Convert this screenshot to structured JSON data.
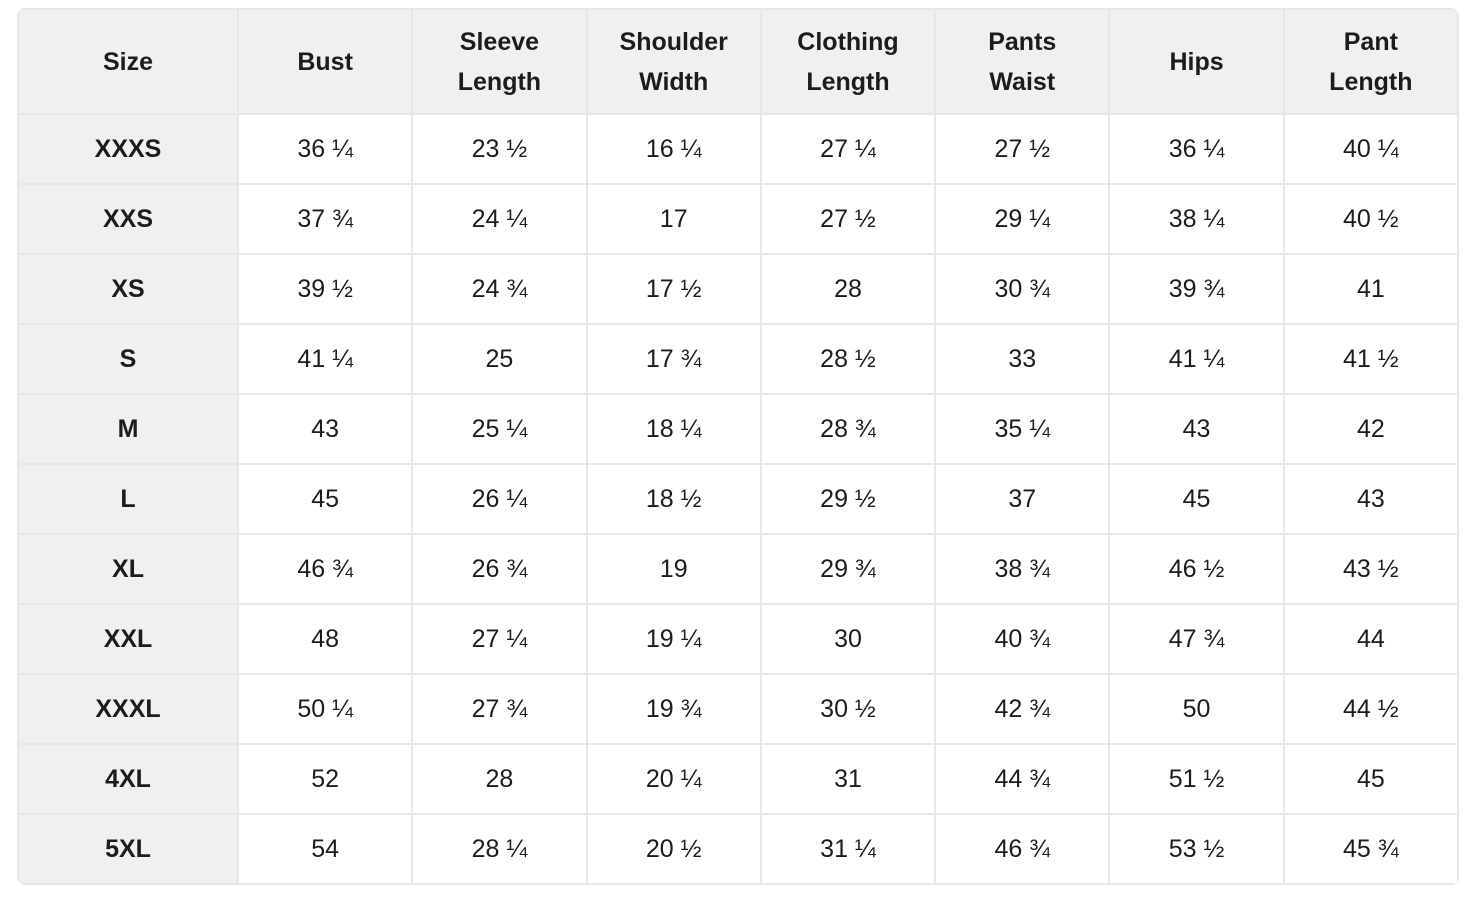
{
  "table": {
    "columns": [
      "Size",
      "Bust",
      "Sleeve Length",
      "Shoulder Width",
      "Clothing Length",
      "Pants Waist",
      "Hips",
      "Pant Length"
    ],
    "rows": [
      {
        "size": "XXXS",
        "values": [
          "36 ¼",
          "23 ½",
          "16 ¼",
          "27 ¼",
          "27 ½",
          "36 ¼",
          "40 ¼"
        ]
      },
      {
        "size": "XXS",
        "values": [
          "37 ¾",
          "24 ¼",
          "17",
          "27 ½",
          "29 ¼",
          "38 ¼",
          "40 ½"
        ]
      },
      {
        "size": "XS",
        "values": [
          "39 ½",
          "24 ¾",
          "17 ½",
          "28",
          "30 ¾",
          "39 ¾",
          "41"
        ]
      },
      {
        "size": "S",
        "values": [
          "41 ¼",
          "25",
          "17 ¾",
          "28 ½",
          "33",
          "41 ¼",
          "41 ½"
        ]
      },
      {
        "size": "M",
        "values": [
          "43",
          "25 ¼",
          "18 ¼",
          "28 ¾",
          "35 ¼",
          "43",
          "42"
        ]
      },
      {
        "size": "L",
        "values": [
          "45",
          "26 ¼",
          "18 ½",
          "29 ½",
          "37",
          "45",
          "43"
        ]
      },
      {
        "size": "XL",
        "values": [
          "46 ¾",
          "26 ¾",
          "19",
          "29 ¾",
          "38 ¾",
          "46 ½",
          "43 ½"
        ]
      },
      {
        "size": "XXL",
        "values": [
          "48",
          "27 ¼",
          "19 ¼",
          "30",
          "40 ¾",
          "47 ¾",
          "44"
        ]
      },
      {
        "size": "XXXL",
        "values": [
          "50 ¼",
          "27 ¾",
          "19 ¾",
          "30 ½",
          "42 ¾",
          "50",
          "44 ½"
        ]
      },
      {
        "size": "4XL",
        "values": [
          "52",
          "28",
          "20 ¼",
          "31",
          "44 ¾",
          "51 ½",
          "45"
        ]
      },
      {
        "size": "5XL",
        "values": [
          "54",
          "28 ¼",
          "20 ½",
          "31 ¼",
          "46 ¾",
          "53 ½",
          "45 ¾"
        ]
      }
    ]
  },
  "colors": {
    "page_bg": "#ffffff",
    "header_bg": "#f0f0f0",
    "cell_bg": "#ffffff",
    "border": "#e7e7e7",
    "text": "#1c1c1c"
  }
}
